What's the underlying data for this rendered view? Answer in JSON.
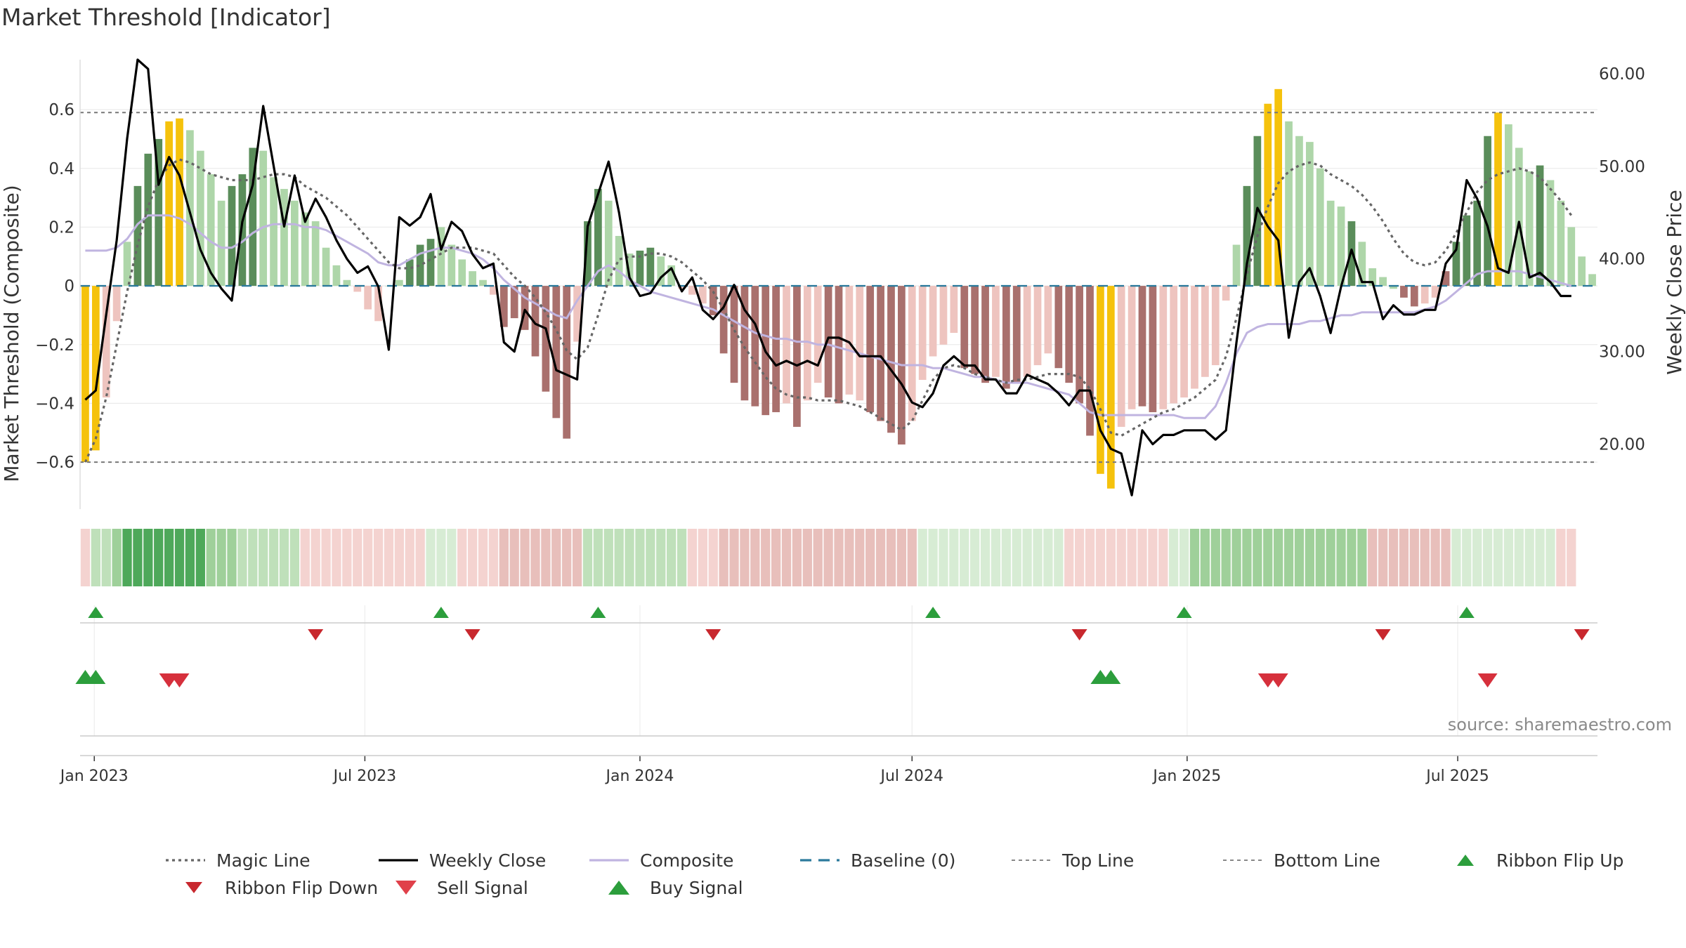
{
  "title": "Market Threshold [Indicator]",
  "source_note": "source: sharemaestro.com",
  "colors": {
    "gold": "#f5c20c",
    "dark_green": "#5a8d5a",
    "light_green": "#aed6a9",
    "dark_red": "#a9706d",
    "light_red": "#eec4bf",
    "close": "#000000",
    "composite": "#c0b4e0",
    "magic": "#666666",
    "baseline": "#2c7a9c",
    "threshold": "#777777",
    "buy": "#2c9e3c",
    "sell": "#d6303c"
  },
  "chart_data": {
    "type": "bar",
    "title": "Market Threshold [Indicator]",
    "ylabel": "Market Threshold (Composite)",
    "y2label": "Weekly Close Price",
    "ylim": [
      -0.76,
      0.77
    ],
    "y2lim": [
      13.0,
      61.5
    ],
    "yticks": [
      0.6,
      0.4,
      0.2,
      0,
      -0.2,
      -0.4,
      -0.6
    ],
    "ytick_labels": [
      "0.6",
      "0.4",
      "0.2",
      "0",
      "−0.2",
      "−0.4",
      "−0.6"
    ],
    "y2ticks": [
      60,
      50,
      40,
      30,
      20
    ],
    "y2tick_labels": [
      "60.00",
      "50.00",
      "40.00",
      "30.00",
      "20.00"
    ],
    "x_start": "2022-12-26",
    "x_weeks": 145,
    "xticks": [
      {
        "label": "Jan 2023",
        "date": "2023-01-01"
      },
      {
        "label": "Jul 2023",
        "date": "2023-07-01"
      },
      {
        "label": "Jan 2024",
        "date": "2024-01-01"
      },
      {
        "label": "Jul 2024",
        "date": "2024-07-01"
      },
      {
        "label": "Jan 2025",
        "date": "2025-01-01"
      },
      {
        "label": "Jul 2025",
        "date": "2025-07-01"
      }
    ],
    "top_line": 0.59,
    "bottom_line": -0.6,
    "baseline": 0,
    "composite_bars": [
      -0.6,
      -0.56,
      -0.38,
      -0.12,
      0.15,
      0.34,
      0.45,
      0.5,
      0.56,
      0.57,
      0.53,
      0.46,
      0.38,
      0.29,
      0.34,
      0.38,
      0.47,
      0.46,
      0.37,
      0.33,
      0.29,
      0.25,
      0.22,
      0.13,
      0.07,
      0.02,
      -0.02,
      -0.08,
      -0.12,
      0.0,
      0.02,
      0.09,
      0.14,
      0.16,
      0.2,
      0.14,
      0.09,
      0.05,
      0.02,
      -0.03,
      -0.14,
      -0.11,
      -0.15,
      -0.24,
      -0.36,
      -0.45,
      -0.52,
      -0.19,
      0.22,
      0.33,
      0.29,
      0.17,
      0.11,
      0.12,
      0.13,
      0.1,
      0.07,
      -0.01,
      -0.03,
      -0.06,
      -0.1,
      -0.23,
      -0.33,
      -0.39,
      -0.41,
      -0.44,
      -0.43,
      -0.4,
      -0.48,
      -0.39,
      -0.33,
      -0.38,
      -0.4,
      -0.37,
      -0.39,
      -0.43,
      -0.46,
      -0.5,
      -0.54,
      -0.46,
      -0.32,
      -0.24,
      -0.2,
      -0.16,
      -0.28,
      -0.3,
      -0.33,
      -0.31,
      -0.35,
      -0.33,
      -0.31,
      -0.27,
      -0.23,
      -0.28,
      -0.33,
      -0.4,
      -0.51,
      -0.64,
      -0.69,
      -0.48,
      -0.42,
      -0.41,
      -0.43,
      -0.42,
      -0.4,
      -0.38,
      -0.35,
      -0.31,
      -0.27,
      -0.05,
      0.14,
      0.34,
      0.51,
      0.62,
      0.67,
      0.56,
      0.51,
      0.49,
      0.4,
      0.29,
      0.27,
      0.22,
      0.15,
      0.06,
      0.03,
      -0.01,
      -0.04,
      -0.07,
      -0.06,
      -0.04,
      0.05,
      0.15,
      0.24,
      0.29,
      0.51,
      0.59,
      0.55,
      0.47,
      0.39,
      0.41,
      0.36,
      0.29,
      0.2,
      0.1,
      0.04
    ],
    "bar_classes": [
      "g",
      "g",
      "lr",
      "lr",
      "lg",
      "dg",
      "dg",
      "dg",
      "g",
      "g",
      "lg",
      "lg",
      "lg",
      "lg",
      "dg",
      "dg",
      "dg",
      "lg",
      "lg",
      "lg",
      "lg",
      "lg",
      "lg",
      "lg",
      "lg",
      "lg",
      "lr",
      "lr",
      "lr",
      "lg",
      "lg",
      "dg",
      "dg",
      "dg",
      "lg",
      "lg",
      "lg",
      "lg",
      "lg",
      "lr",
      "dr",
      "dr",
      "dr",
      "dr",
      "dr",
      "dr",
      "dr",
      "lr",
      "dg",
      "dg",
      "lg",
      "lg",
      "lg",
      "dg",
      "dg",
      "lg",
      "lg",
      "lr",
      "lr",
      "lr",
      "dr",
      "dr",
      "dr",
      "dr",
      "dr",
      "dr",
      "dr",
      "lr",
      "dr",
      "lr",
      "lr",
      "dr",
      "dr",
      "lr",
      "lr",
      "dr",
      "dr",
      "dr",
      "dr",
      "lr",
      "lr",
      "lr",
      "lr",
      "lr",
      "dr",
      "dr",
      "dr",
      "lr",
      "dr",
      "dr",
      "lr",
      "lr",
      "lr",
      "dr",
      "dr",
      "dr",
      "dr",
      "g",
      "g",
      "lr",
      "lr",
      "dr",
      "dr",
      "lr",
      "lr",
      "lr",
      "lr",
      "lr",
      "lr",
      "lr",
      "lg",
      "dg",
      "dg",
      "g",
      "g",
      "lg",
      "lg",
      "lg",
      "lg",
      "lg",
      "lg",
      "dg",
      "lg",
      "lg",
      "lg",
      "lg",
      "dr",
      "dr",
      "lr",
      "lr",
      "dr",
      "dg",
      "dg",
      "dg",
      "dg",
      "g",
      "lg",
      "lg",
      "lg",
      "dg",
      "lg",
      "lg",
      "lg",
      "lg",
      "lg"
    ],
    "magic_line": [
      -0.6,
      -0.52,
      -0.38,
      -0.2,
      -0.02,
      0.14,
      0.27,
      0.36,
      0.41,
      0.43,
      0.42,
      0.4,
      0.38,
      0.37,
      0.36,
      0.36,
      0.36,
      0.37,
      0.38,
      0.38,
      0.37,
      0.34,
      0.32,
      0.3,
      0.27,
      0.24,
      0.2,
      0.16,
      0.12,
      0.08,
      0.06,
      0.06,
      0.07,
      0.09,
      0.11,
      0.13,
      0.13,
      0.13,
      0.12,
      0.11,
      0.07,
      0.03,
      0.0,
      -0.04,
      -0.09,
      -0.15,
      -0.22,
      -0.25,
      -0.21,
      -0.1,
      0.02,
      0.09,
      0.1,
      0.1,
      0.11,
      0.11,
      0.1,
      0.08,
      0.05,
      0.02,
      -0.02,
      -0.08,
      -0.15,
      -0.21,
      -0.26,
      -0.31,
      -0.35,
      -0.37,
      -0.38,
      -0.38,
      -0.39,
      -0.39,
      -0.39,
      -0.4,
      -0.41,
      -0.43,
      -0.45,
      -0.47,
      -0.49,
      -0.46,
      -0.39,
      -0.32,
      -0.28,
      -0.27,
      -0.28,
      -0.3,
      -0.31,
      -0.32,
      -0.33,
      -0.32,
      -0.32,
      -0.31,
      -0.3,
      -0.3,
      -0.3,
      -0.31,
      -0.35,
      -0.42,
      -0.5,
      -0.51,
      -0.49,
      -0.47,
      -0.45,
      -0.43,
      -0.42,
      -0.4,
      -0.38,
      -0.35,
      -0.32,
      -0.24,
      -0.11,
      0.04,
      0.17,
      0.27,
      0.35,
      0.39,
      0.41,
      0.42,
      0.41,
      0.38,
      0.36,
      0.34,
      0.31,
      0.27,
      0.22,
      0.16,
      0.11,
      0.08,
      0.07,
      0.08,
      0.12,
      0.18,
      0.25,
      0.32,
      0.36,
      0.38,
      0.39,
      0.4,
      0.39,
      0.37,
      0.33,
      0.29,
      0.24
    ],
    "composite_line": [
      0.12,
      0.12,
      0.12,
      0.13,
      0.16,
      0.21,
      0.24,
      0.24,
      0.24,
      0.23,
      0.21,
      0.18,
      0.15,
      0.13,
      0.13,
      0.15,
      0.18,
      0.2,
      0.21,
      0.21,
      0.21,
      0.2,
      0.2,
      0.19,
      0.17,
      0.15,
      0.13,
      0.11,
      0.08,
      0.07,
      0.07,
      0.09,
      0.11,
      0.12,
      0.13,
      0.13,
      0.12,
      0.11,
      0.09,
      0.06,
      0.02,
      -0.01,
      -0.04,
      -0.06,
      -0.08,
      -0.1,
      -0.11,
      -0.05,
      0.0,
      0.05,
      0.07,
      0.05,
      0.02,
      0.0,
      -0.02,
      -0.03,
      -0.04,
      -0.05,
      -0.06,
      -0.07,
      -0.08,
      -0.1,
      -0.12,
      -0.14,
      -0.16,
      -0.17,
      -0.18,
      -0.18,
      -0.19,
      -0.19,
      -0.2,
      -0.2,
      -0.21,
      -0.22,
      -0.23,
      -0.24,
      -0.25,
      -0.26,
      -0.27,
      -0.27,
      -0.27,
      -0.28,
      -0.28,
      -0.29,
      -0.3,
      -0.31,
      -0.31,
      -0.32,
      -0.33,
      -0.33,
      -0.33,
      -0.34,
      -0.35,
      -0.36,
      -0.37,
      -0.4,
      -0.43,
      -0.44,
      -0.44,
      -0.44,
      -0.44,
      -0.44,
      -0.44,
      -0.44,
      -0.44,
      -0.45,
      -0.45,
      -0.45,
      -0.41,
      -0.33,
      -0.23,
      -0.16,
      -0.14,
      -0.13,
      -0.13,
      -0.13,
      -0.13,
      -0.12,
      -0.12,
      -0.11,
      -0.1,
      -0.1,
      -0.09,
      -0.09,
      -0.09,
      -0.09,
      -0.09,
      -0.09,
      -0.08,
      -0.07,
      -0.05,
      -0.02,
      0.01,
      0.04,
      0.05,
      0.05,
      0.05,
      0.05,
      0.04,
      0.03,
      0.02,
      0.01,
      0.0
    ],
    "weekly_close": [
      24.8,
      25.8,
      34.0,
      42.0,
      53.0,
      61.5,
      60.5,
      48.0,
      51.0,
      49.0,
      45.0,
      41.0,
      38.5,
      36.8,
      35.5,
      44.0,
      48.0,
      56.5,
      50.0,
      43.5,
      49.0,
      44.0,
      46.5,
      44.5,
      42.0,
      40.0,
      38.5,
      39.2,
      37.0,
      30.2,
      44.5,
      43.6,
      44.5,
      47.0,
      41.0,
      44.0,
      43.0,
      40.5,
      39.0,
      39.5,
      31.0,
      30.0,
      34.5,
      33.0,
      32.5,
      28.0,
      27.5,
      27.0,
      43.5,
      47.0,
      50.5,
      45.0,
      38.0,
      36.0,
      36.3,
      38.0,
      39.0,
      36.5,
      38.0,
      34.5,
      33.5,
      34.8,
      37.2,
      34.5,
      33.0,
      30.0,
      28.5,
      29.0,
      28.5,
      29.0,
      28.5,
      31.5,
      31.5,
      31.0,
      29.5,
      29.5,
      29.5,
      28.0,
      26.5,
      24.5,
      24.0,
      25.5,
      28.5,
      29.5,
      28.5,
      28.5,
      27.0,
      27.0,
      25.5,
      25.5,
      27.5,
      27.0,
      26.5,
      25.5,
      24.2,
      25.8,
      25.8,
      21.5,
      19.5,
      19.0,
      14.5,
      21.5,
      20.0,
      21.0,
      21.0,
      21.5,
      21.5,
      21.5,
      20.5,
      21.5,
      31.0,
      39.5,
      45.5,
      43.5,
      42.0,
      31.5,
      37.5,
      39.0,
      36.0,
      32.0,
      37.0,
      41.0,
      37.5,
      37.5,
      33.5,
      35.0,
      34.0,
      34.0,
      34.5,
      34.5,
      39.5,
      41.0,
      48.5,
      46.5,
      43.5,
      39.0,
      38.5,
      44.0,
      38.0,
      38.5,
      37.5,
      36.0,
      36.0
    ],
    "ribbon": [
      "lr",
      "lg",
      "lg",
      "g",
      "dg",
      "dg",
      "dg",
      "dg",
      "dg",
      "dg",
      "dg",
      "dg",
      "g",
      "g",
      "g",
      "lg",
      "lg",
      "lg",
      "lg",
      "lg",
      "lg",
      "lr",
      "lr",
      "lr",
      "lr",
      "lr",
      "lr",
      "lr",
      "lr",
      "lr",
      "lr",
      "lr",
      "lr",
      "xg",
      "xg",
      "xg",
      "lr",
      "lr",
      "lr",
      "lr",
      "mr",
      "mr",
      "mr",
      "mr",
      "mr",
      "mr",
      "mr",
      "mr",
      "lg",
      "lg",
      "lg",
      "lg",
      "lg",
      "lg",
      "lg",
      "lg",
      "lg",
      "lg",
      "lr",
      "lr",
      "lr",
      "mr",
      "mr",
      "mr",
      "mr",
      "mr",
      "mr",
      "mr",
      "mr",
      "mr",
      "mr",
      "mr",
      "mr",
      "mr",
      "mr",
      "mr",
      "mr",
      "mr",
      "mr",
      "mr",
      "xg",
      "xg",
      "xg",
      "xg",
      "xg",
      "xg",
      "xg",
      "xg",
      "xg",
      "xg",
      "xg",
      "xg",
      "xg",
      "xg",
      "lr",
      "lr",
      "lr",
      "lr",
      "lr",
      "lr",
      "lr",
      "lr",
      "lr",
      "lr",
      "xg",
      "xg",
      "g",
      "g",
      "g",
      "g",
      "g",
      "g",
      "g",
      "g",
      "g",
      "g",
      "g",
      "g",
      "g",
      "g",
      "g",
      "g",
      "g",
      "mr",
      "mr",
      "mr",
      "mr",
      "mr",
      "mr",
      "mr",
      "mr",
      "xg",
      "xg",
      "xg",
      "xg",
      "xg",
      "xg",
      "xg",
      "xg",
      "xg",
      "xg",
      "lr",
      "lr"
    ],
    "ribbon_flip_up": [
      1,
      34,
      49,
      81,
      105,
      132
    ],
    "ribbon_flip_down": [
      22,
      37,
      60,
      95,
      124,
      143
    ],
    "buy_signals": [
      0,
      1,
      97,
      98
    ],
    "sell_signals": [
      8,
      9,
      113,
      114,
      134
    ],
    "legend": [
      {
        "label": "Magic Line",
        "kind": "dotted",
        "color": "#666666"
      },
      {
        "label": "Weekly Close",
        "kind": "solid",
        "color": "#000000"
      },
      {
        "label": "Composite",
        "kind": "solid",
        "color": "#c0b4e0"
      },
      {
        "label": "Baseline (0)",
        "kind": "dashed",
        "color": "#2c7a9c"
      },
      {
        "label": "Top Line",
        "kind": "dotted-light",
        "color": "#888888"
      },
      {
        "label": "Bottom Line",
        "kind": "dotted-light",
        "color": "#888888"
      },
      {
        "label": "Ribbon Flip Up",
        "kind": "tri-up",
        "color": "#2c9e3c"
      },
      {
        "label": "Ribbon Flip Down",
        "kind": "tri-down",
        "color": "#c8282e"
      },
      {
        "label": "Sell Signal",
        "kind": "tri-down-big",
        "color": "#e0404a"
      },
      {
        "label": "Buy Signal",
        "kind": "tri-up-big",
        "color": "#2c9e3c"
      }
    ]
  }
}
